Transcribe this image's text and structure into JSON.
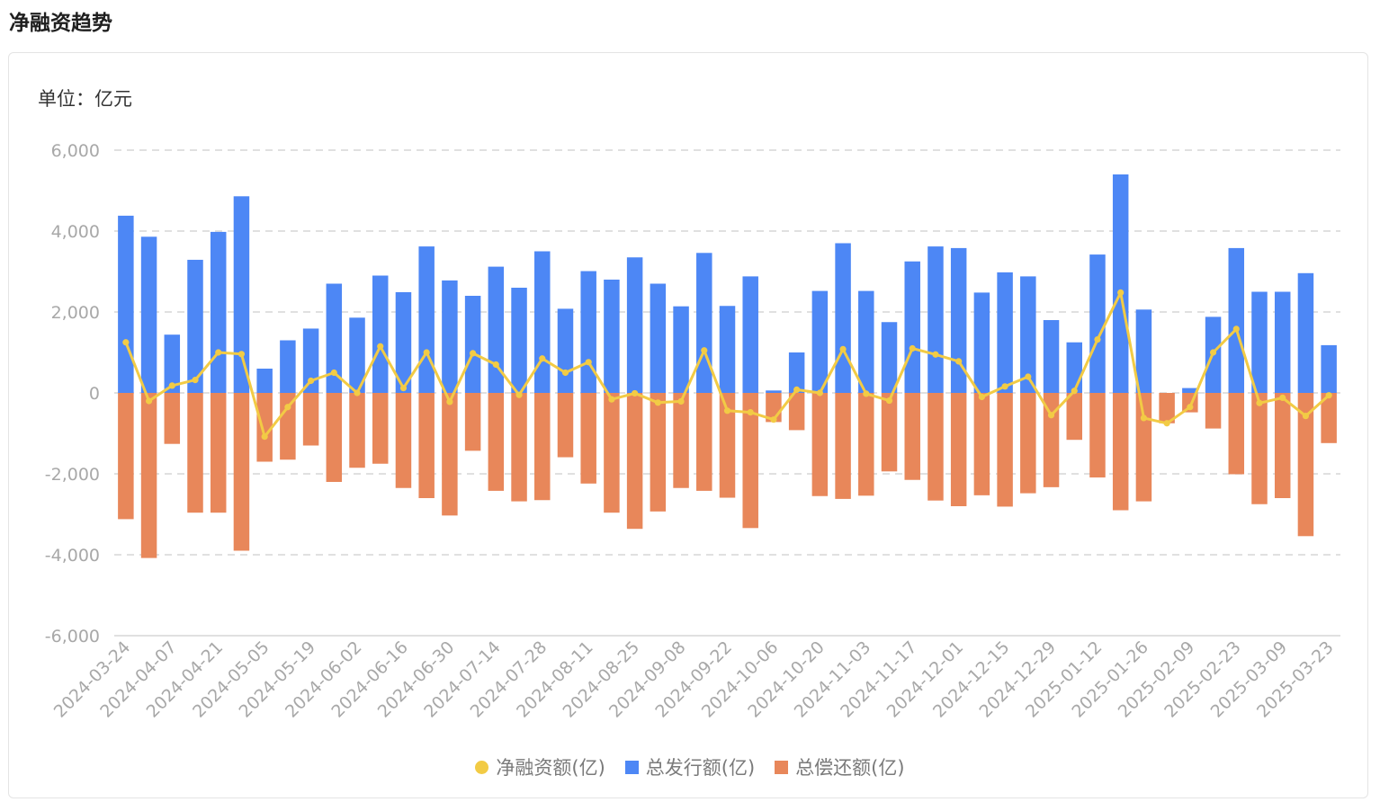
{
  "page": {
    "title": "净融资趋势",
    "unit_label": "单位：亿元"
  },
  "colors": {
    "net": "#F2CB45",
    "issuance": "#4D87F5",
    "repayment": "#E8875A",
    "grid": "#d6d6d6"
  },
  "chart_data": {
    "type": "bar",
    "title": "",
    "ylim": [
      -6000,
      6000
    ],
    "yticks": [
      6000,
      4000,
      2000,
      0,
      -2000,
      -4000,
      -6000
    ],
    "ytick_labels": [
      "6,000",
      "4,000",
      "2,000",
      "0",
      "-2,000",
      "-4,000",
      "-6,000"
    ],
    "grid": true,
    "legend_position": "bottom",
    "xtick_labels": [
      "2024-03-24",
      "2024-04-07",
      "2024-04-21",
      "2024-05-05",
      "2024-05-19",
      "2024-06-02",
      "2024-06-16",
      "2024-06-30",
      "2024-07-14",
      "2024-07-28",
      "2024-08-11",
      "2024-08-25",
      "2024-09-08",
      "2024-09-22",
      "2024-10-06",
      "2024-10-20",
      "2024-11-03",
      "2024-11-17",
      "2024-12-01",
      "2024-12-15",
      "2024-12-29",
      "2025-01-12",
      "2025-01-26",
      "2025-02-09",
      "2025-02-23",
      "2025-03-09",
      "2025-03-23"
    ],
    "series": [
      {
        "name": "净融资额(亿)",
        "type": "line",
        "values": [
          1250,
          -200,
          180,
          320,
          1000,
          960,
          -1080,
          -350,
          300,
          500,
          0,
          1150,
          120,
          1000,
          -220,
          980,
          700,
          -50,
          850,
          500,
          760,
          -160,
          -10,
          -240,
          -210,
          1050,
          -440,
          -480,
          -660,
          80,
          0,
          1080,
          -20,
          -190,
          1100,
          950,
          780,
          -100,
          160,
          400,
          -550,
          50,
          1320,
          2480,
          -620,
          -750,
          -350,
          1000,
          1580,
          -250,
          -120,
          -570,
          -60
        ]
      },
      {
        "name": "总发行额(亿)",
        "type": "bar",
        "values": [
          4380,
          3860,
          1440,
          3290,
          3980,
          4860,
          600,
          1300,
          1590,
          2700,
          1860,
          2900,
          2490,
          3620,
          2780,
          2400,
          3120,
          2600,
          3500,
          2080,
          3010,
          2800,
          3350,
          2700,
          2140,
          3460,
          2150,
          2880,
          60,
          1000,
          2520,
          3700,
          2520,
          1750,
          3250,
          3620,
          3580,
          2480,
          2980,
          2880,
          1800,
          1250,
          3420,
          5400,
          2060,
          0,
          120,
          1880,
          3580,
          2500,
          2500,
          2960,
          1180
        ]
      },
      {
        "name": "总偿还额(亿)",
        "type": "bar",
        "values": [
          -3120,
          -4080,
          -1260,
          -2960,
          -2960,
          -3900,
          -1700,
          -1650,
          -1300,
          -2200,
          -1850,
          -1750,
          -2350,
          -2600,
          -3030,
          -1430,
          -2420,
          -2680,
          -2650,
          -1590,
          -2240,
          -2960,
          -3360,
          -2930,
          -2350,
          -2420,
          -2590,
          -3340,
          -720,
          -920,
          -2550,
          -2620,
          -2540,
          -1940,
          -2150,
          -2660,
          -2800,
          -2530,
          -2810,
          -2480,
          -2330,
          -1160,
          -2090,
          -2900,
          -2680,
          -750,
          -480,
          -880,
          -2010,
          -2750,
          -2600,
          -3540,
          -1240
        ]
      }
    ]
  }
}
